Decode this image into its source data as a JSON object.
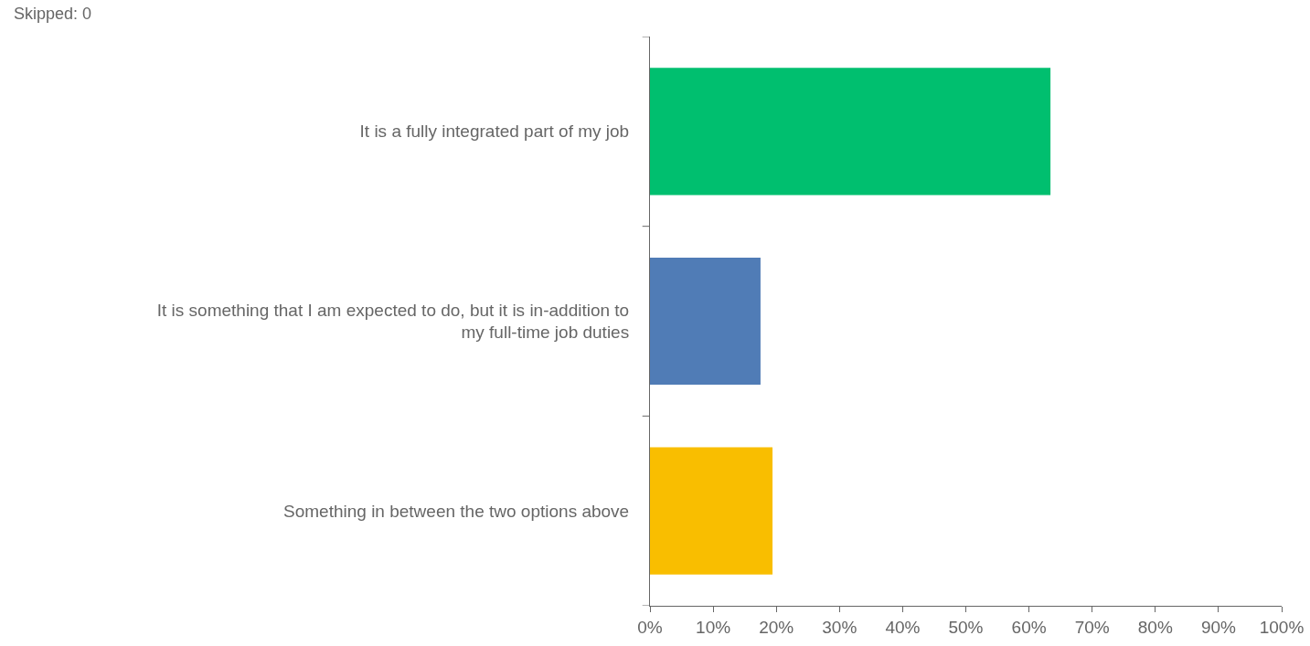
{
  "chart_data": {
    "type": "bar",
    "orientation": "horizontal",
    "categories": [
      "It is a fully integrated part of my job",
      "It is something that I am expected to do, but it is in-addition to my full-time job duties",
      "Something in between the two options above"
    ],
    "values": [
      63.4,
      17.5,
      19.4
    ],
    "colors": [
      "#00bf6f",
      "#507cb6",
      "#f9be00"
    ],
    "xlim": [
      0,
      100
    ],
    "xticks": [
      {
        "value": 0,
        "label": "0%"
      },
      {
        "value": 10,
        "label": "10%"
      },
      {
        "value": 20,
        "label": "20%"
      },
      {
        "value": 30,
        "label": "30%"
      },
      {
        "value": 40,
        "label": "40%"
      },
      {
        "value": 50,
        "label": "50%"
      },
      {
        "value": 60,
        "label": "60%"
      },
      {
        "value": 70,
        "label": "70%"
      },
      {
        "value": 80,
        "label": "80%"
      },
      {
        "value": 90,
        "label": "90%"
      },
      {
        "value": 100,
        "label": "100%"
      }
    ],
    "annotations": [
      "Skipped: 0"
    ]
  }
}
